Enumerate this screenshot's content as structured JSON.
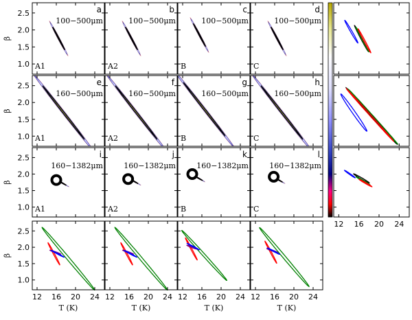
{
  "chart_data": {
    "type": "contour-grid",
    "xlabel": "T (K)",
    "ylabel": "β",
    "xlim": [
      11,
      26
    ],
    "ylim": [
      0.7,
      2.8
    ],
    "xticks": [
      "12",
      "16",
      "20",
      "24"
    ],
    "yticks": [
      "1.0",
      "1.5",
      "2.0",
      "2.5"
    ],
    "colorbar": "black-red-blue-white-yellow",
    "panels": [
      {
        "letter": "a",
        "model": "A1",
        "range": "100−500μm",
        "cx": 16.5,
        "cy": 1.75,
        "a": 3.2,
        "b": 0.12,
        "ang": -62
      },
      {
        "letter": "b",
        "model": "A2",
        "range": "100−500μm",
        "cx": 16.5,
        "cy": 1.75,
        "a": 3.2,
        "b": 0.12,
        "ang": -62
      },
      {
        "letter": "c",
        "model": "B",
        "range": "100−500μm",
        "cx": 15.5,
        "cy": 1.85,
        "a": 3.2,
        "b": 0.12,
        "ang": -62
      },
      {
        "letter": "d",
        "model": "C",
        "range": "100−500μm",
        "cx": 16.5,
        "cy": 1.75,
        "a": 3.2,
        "b": 0.12,
        "ang": -62
      },
      {
        "letter": "e",
        "model": "A1",
        "range": "160−500μm",
        "cx": 17.5,
        "cy": 1.7,
        "a": 8.5,
        "b": 0.18,
        "ang": -52
      },
      {
        "letter": "f",
        "model": "A2",
        "range": "160−500μm",
        "cx": 17.5,
        "cy": 1.7,
        "a": 8.5,
        "b": 0.18,
        "ang": -52
      },
      {
        "letter": "g",
        "model": "B",
        "range": "160−500μm",
        "cx": 16.5,
        "cy": 1.8,
        "a": 8.5,
        "b": 0.18,
        "ang": -52
      },
      {
        "letter": "h",
        "model": "C",
        "range": "160−500μm",
        "cx": 17.5,
        "cy": 1.7,
        "a": 8.5,
        "b": 0.18,
        "ang": -52
      },
      {
        "letter": "i",
        "model": "A1",
        "range": "160−1382μm",
        "cx": 17.0,
        "cy": 1.75,
        "a": 1.5,
        "b": 0.08,
        "ang": -30,
        "dot": [
          16.0,
          1.82
        ]
      },
      {
        "letter": "j",
        "model": "A2",
        "range": "160−1382μm",
        "cx": 16.8,
        "cy": 1.8,
        "a": 1.5,
        "b": 0.08,
        "ang": -30,
        "dot": [
          15.8,
          1.85
        ]
      },
      {
        "letter": "k",
        "model": "B",
        "range": "160−1382μm",
        "cx": 15.0,
        "cy": 1.9,
        "a": 1.5,
        "b": 0.08,
        "ang": -30,
        "dot": [
          14.0,
          2.0
        ]
      },
      {
        "letter": "l",
        "model": "C",
        "range": "160−1382μm",
        "cx": 16.5,
        "cy": 1.85,
        "a": 1.5,
        "b": 0.08,
        "ang": -30,
        "dot": [
          15.8,
          1.92
        ]
      }
    ],
    "summary_panels": [
      {
        "row": 0,
        "contours": [
          {
            "color": "#0000ff",
            "cx": 14.5,
            "cy": 1.95,
            "a": 2.6,
            "b": 0.15,
            "ang": -60
          },
          {
            "color": "#000000",
            "cx": 16.5,
            "cy": 1.75,
            "a": 2.9,
            "b": 0.13,
            "ang": -62
          },
          {
            "color": "#008000",
            "cx": 16.7,
            "cy": 1.72,
            "a": 2.8,
            "b": 0.12,
            "ang": -62
          },
          {
            "color": "#ff0000",
            "cx": 17.1,
            "cy": 1.68,
            "a": 2.7,
            "b": 0.12,
            "ang": -62
          }
        ]
      },
      {
        "row": 1,
        "contours": [
          {
            "color": "#0000ff",
            "cx": 15.0,
            "cy": 1.7,
            "a": 4.5,
            "b": 0.28,
            "ang": -55
          },
          {
            "color": "#000000",
            "cx": 18.5,
            "cy": 1.6,
            "a": 7.5,
            "b": 0.12,
            "ang": -48
          },
          {
            "color": "#008000",
            "cx": 18.8,
            "cy": 1.58,
            "a": 7.3,
            "b": 0.12,
            "ang": -48
          },
          {
            "color": "#ff0000",
            "cx": 18.2,
            "cy": 1.63,
            "a": 7.0,
            "b": 0.12,
            "ang": -48
          }
        ]
      },
      {
        "row": 2,
        "contours": [
          {
            "color": "#0000ff",
            "cx": 14.2,
            "cy": 2.0,
            "a": 1.3,
            "b": 0.09,
            "ang": -35
          },
          {
            "color": "#000000",
            "cx": 16.5,
            "cy": 1.87,
            "a": 1.8,
            "b": 0.12,
            "ang": -30
          },
          {
            "color": "#008000",
            "cx": 16.8,
            "cy": 1.8,
            "a": 1.6,
            "b": 0.1,
            "ang": -30
          },
          {
            "color": "#ff0000",
            "cx": 17.3,
            "cy": 1.73,
            "a": 1.5,
            "b": 0.1,
            "ang": -30
          }
        ]
      }
    ],
    "bottom_panels": [
      {
        "contours": [
          {
            "color": "#008000",
            "cx": 18.5,
            "cy": 1.65,
            "a": 8.5,
            "b": 0.28,
            "ang": -50
          },
          {
            "color": "#ff0000",
            "cx": 15.5,
            "cy": 1.8,
            "a": 2.6,
            "b": 0.12,
            "ang": -62
          },
          {
            "color": "#800080",
            "cx": 15.8,
            "cy": 1.85,
            "a": 1.2,
            "b": 0.1,
            "ang": -20
          },
          {
            "color": "#0000ff",
            "cx": 16.3,
            "cy": 1.8,
            "a": 1.5,
            "b": 0.08,
            "ang": -28
          }
        ]
      },
      {
        "contours": [
          {
            "color": "#008000",
            "cx": 18.5,
            "cy": 1.65,
            "a": 8.5,
            "b": 0.28,
            "ang": -50
          },
          {
            "color": "#ff0000",
            "cx": 15.5,
            "cy": 1.8,
            "a": 2.6,
            "b": 0.12,
            "ang": -62
          },
          {
            "color": "#800080",
            "cx": 15.8,
            "cy": 1.85,
            "a": 1.2,
            "b": 0.1,
            "ang": -20
          },
          {
            "color": "#0000ff",
            "cx": 16.3,
            "cy": 1.8,
            "a": 1.5,
            "b": 0.08,
            "ang": -28
          }
        ]
      },
      {
        "contours": [
          {
            "color": "#008000",
            "cx": 16.5,
            "cy": 1.75,
            "a": 7.0,
            "b": 0.25,
            "ang": -48
          },
          {
            "color": "#ff0000",
            "cx": 13.8,
            "cy": 1.95,
            "a": 2.6,
            "b": 0.12,
            "ang": -62
          },
          {
            "color": "#800080",
            "cx": 14.0,
            "cy": 2.0,
            "a": 1.2,
            "b": 0.1,
            "ang": -20
          },
          {
            "color": "#0000ff",
            "cx": 14.2,
            "cy": 2.02,
            "a": 1.4,
            "b": 0.08,
            "ang": -28
          }
        ]
      },
      {
        "contours": [
          {
            "color": "#008000",
            "cx": 18.0,
            "cy": 1.7,
            "a": 8.0,
            "b": 0.28,
            "ang": -50
          },
          {
            "color": "#ff0000",
            "cx": 15.2,
            "cy": 1.85,
            "a": 2.6,
            "b": 0.12,
            "ang": -62
          },
          {
            "color": "#800080",
            "cx": 15.5,
            "cy": 1.9,
            "a": 1.2,
            "b": 0.1,
            "ang": -20
          },
          {
            "color": "#0000ff",
            "cx": 15.8,
            "cy": 1.88,
            "a": 1.4,
            "b": 0.08,
            "ang": -28
          }
        ]
      }
    ]
  }
}
